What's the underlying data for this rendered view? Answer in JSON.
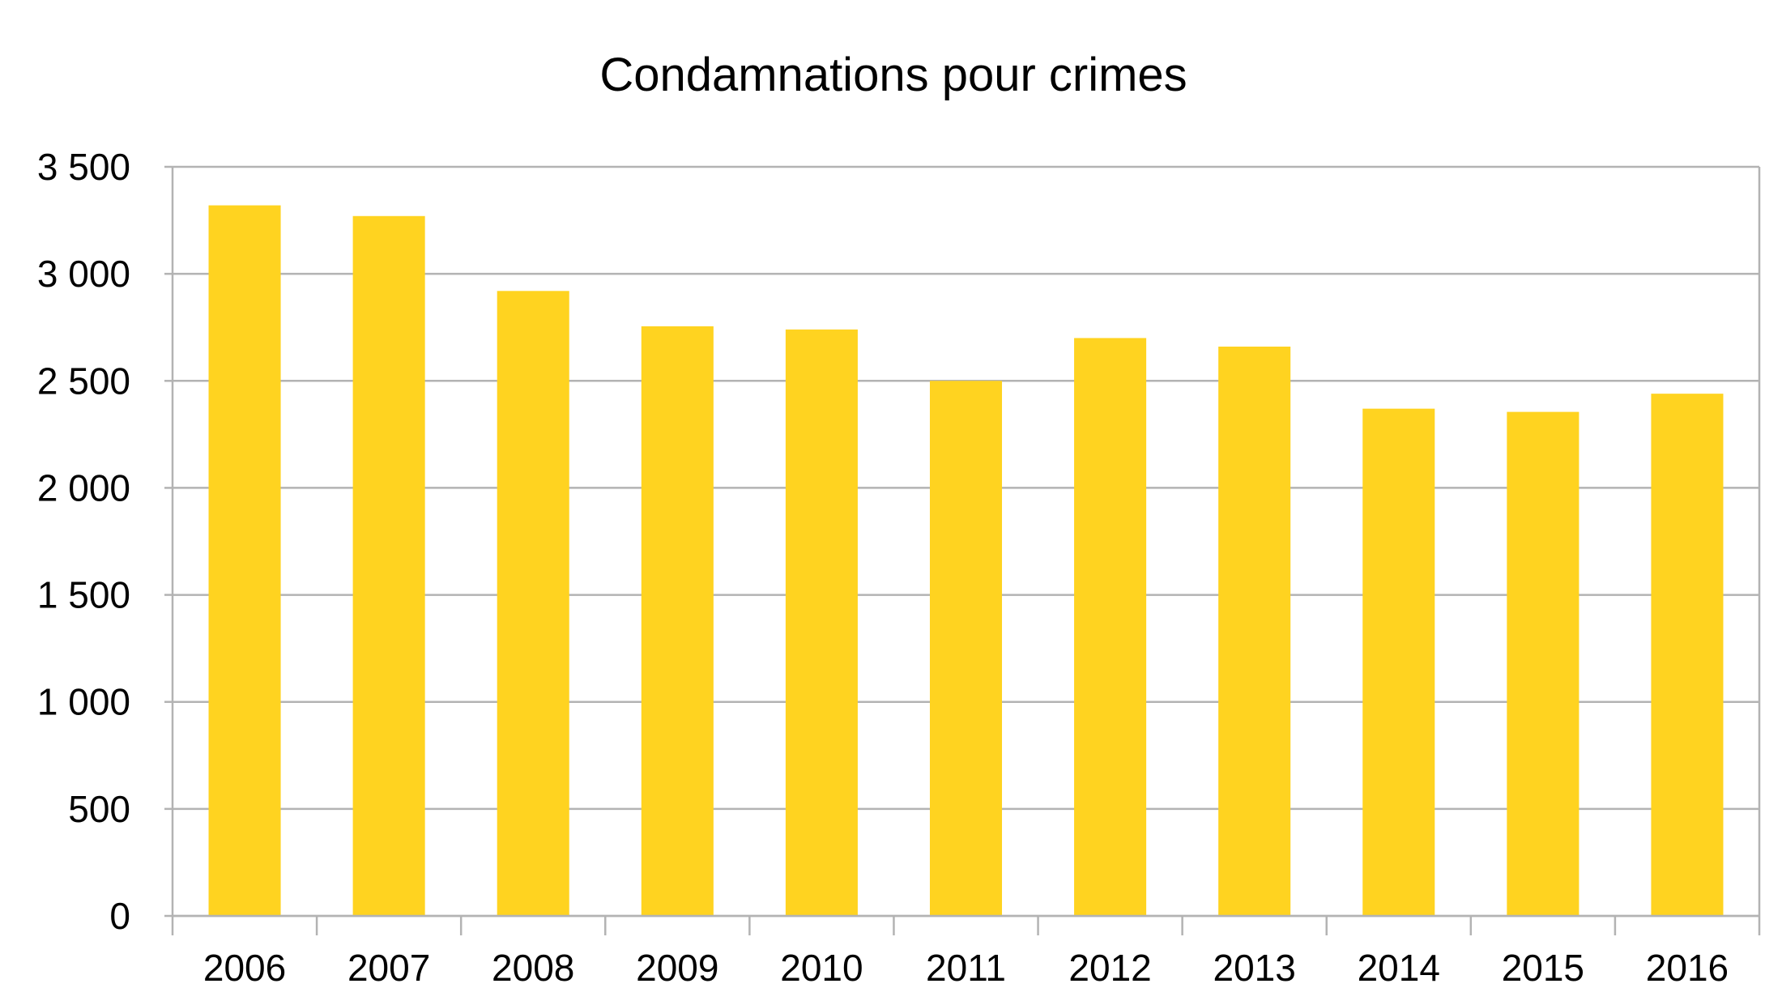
{
  "chart_data": {
    "type": "bar",
    "title": "Condamnations pour crimes",
    "xlabel": "",
    "ylabel": "",
    "categories": [
      "2006",
      "2007",
      "2008",
      "2009",
      "2010",
      "2011",
      "2012",
      "2013",
      "2014",
      "2015",
      "2016"
    ],
    "values": [
      3320,
      3270,
      2920,
      2755,
      2740,
      2500,
      2700,
      2660,
      2370,
      2355,
      2440
    ],
    "ylim": [
      0,
      3500
    ],
    "yticks": [
      0,
      500,
      1000,
      1500,
      2000,
      2500,
      3000,
      3500
    ],
    "ytick_labels": [
      "0",
      "500",
      "1 000",
      "1 500",
      "2 000",
      "2 500",
      "3 000",
      "3 500"
    ],
    "grid": true,
    "legend": "none",
    "bar_color": "#ffd320",
    "grid_color": "#b3b3b3"
  }
}
